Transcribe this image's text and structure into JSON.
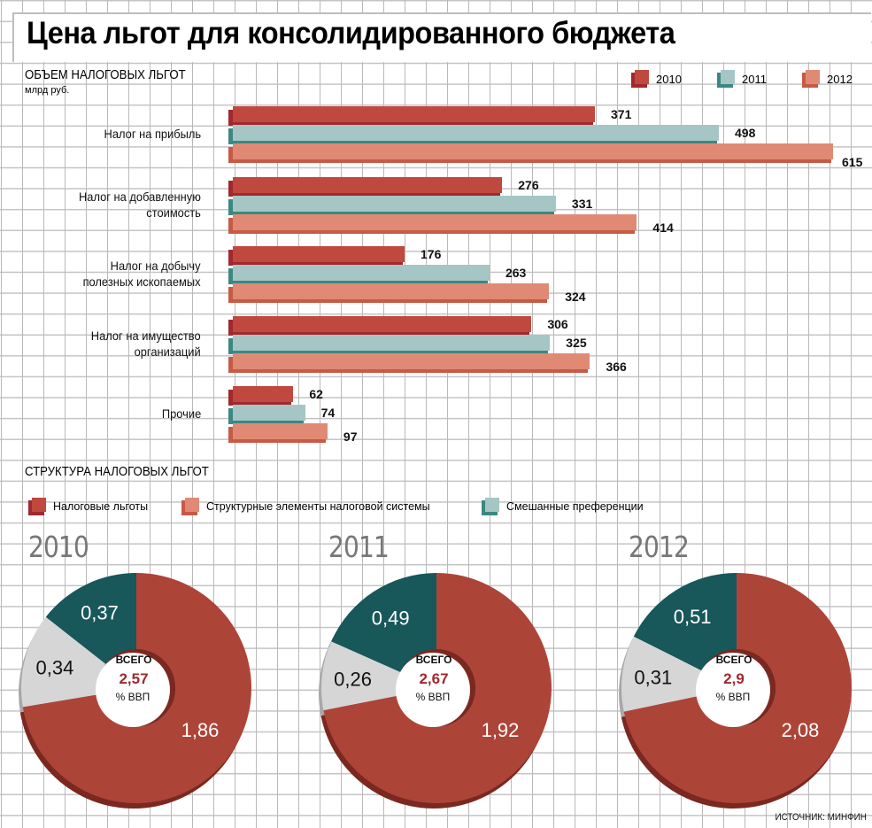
{
  "header": {
    "title": "Цена льгот для консолидированного бюджета"
  },
  "colors": {
    "y2010": "#c0493f",
    "y2010_dark": "#a1282e",
    "y2011": "#a5c6c5",
    "y2011_dark": "#3d8782",
    "y2012": "#e08a75",
    "y2012_dark": "#c75a45",
    "benefits": "#ad4438",
    "benefits_dark": "#7a2820",
    "structural": "#d6d6d6",
    "structural_dark": "#a8a8a8",
    "mixed": "#18575a",
    "total_value": "#a1282e"
  },
  "chart_data": [
    {
      "type": "bar",
      "orientation": "horizontal",
      "title": "ОБЪЕМ НАЛОГОВЫХ ЛЬГОТ",
      "units": "млрд руб.",
      "legend_position": "top-right",
      "categories": [
        "Налог на прибыль",
        "Налог на добавленную стоимость",
        "Налог на добычу полезных ископаемых",
        "Налог на имущество организаций",
        "Прочие"
      ],
      "category_lines": [
        [
          "Налог на прибыль"
        ],
        [
          "Налог на добавленную",
          "стоимость"
        ],
        [
          "Налог на добычу",
          "полезных ископаемых"
        ],
        [
          "Налог на имущество",
          "организаций"
        ],
        [
          "Прочие"
        ]
      ],
      "series": [
        {
          "name": "2010",
          "color_key": "y2010",
          "values": [
            371,
            276,
            176,
            306,
            62
          ]
        },
        {
          "name": "2011",
          "color_key": "y2011",
          "values": [
            498,
            331,
            263,
            325,
            74
          ]
        },
        {
          "name": "2012",
          "color_key": "y2012",
          "values": [
            615,
            414,
            324,
            366,
            97
          ]
        }
      ],
      "xlim": [
        0,
        615
      ],
      "grid": true
    },
    {
      "type": "pie",
      "variant": "donut",
      "title": "СТРУКТУРА НАЛОГОВЫХ ЛЬГОТ",
      "legend_position": "top-left",
      "legend": [
        {
          "name": "Налоговые льготы",
          "color_key": "y2010"
        },
        {
          "name": "Структурные элементы налоговой системы",
          "color_key": "y2012"
        },
        {
          "name": "Смешанные преференции",
          "color_key": "y2011"
        }
      ],
      "center_label_top": "ВСЕГО",
      "center_label_bottom": "% ВВП",
      "charts": [
        {
          "year": "2010",
          "total": "2,57",
          "slices": [
            {
              "name": "Налоговые льготы",
              "value": 1.86,
              "label": "1,86",
              "color_key": "benefits"
            },
            {
              "name": "Структурные элементы налоговой системы",
              "value": 0.34,
              "label": "0,34",
              "color_key": "structural"
            },
            {
              "name": "Смешанные преференции",
              "value": 0.37,
              "label": "0,37",
              "color_key": "mixed"
            }
          ]
        },
        {
          "year": "2011",
          "total": "2,67",
          "slices": [
            {
              "name": "Налоговые льготы",
              "value": 1.92,
              "label": "1,92",
              "color_key": "benefits"
            },
            {
              "name": "Структурные элементы налоговой системы",
              "value": 0.26,
              "label": "0,26",
              "color_key": "structural"
            },
            {
              "name": "Смешанные преференции",
              "value": 0.49,
              "label": "0,49",
              "color_key": "mixed"
            }
          ]
        },
        {
          "year": "2012",
          "total": "2,9",
          "slices": [
            {
              "name": "Налоговые льготы",
              "value": 2.08,
              "label": "2,08",
              "color_key": "benefits"
            },
            {
              "name": "Структурные элементы налоговой системы",
              "value": 0.31,
              "label": "0,31",
              "color_key": "structural"
            },
            {
              "name": "Смешанные преференции",
              "value": 0.51,
              "label": "0,51",
              "color_key": "mixed"
            }
          ]
        }
      ]
    }
  ],
  "footer": {
    "source": "ИСТОЧНИК: МИНФИН"
  }
}
